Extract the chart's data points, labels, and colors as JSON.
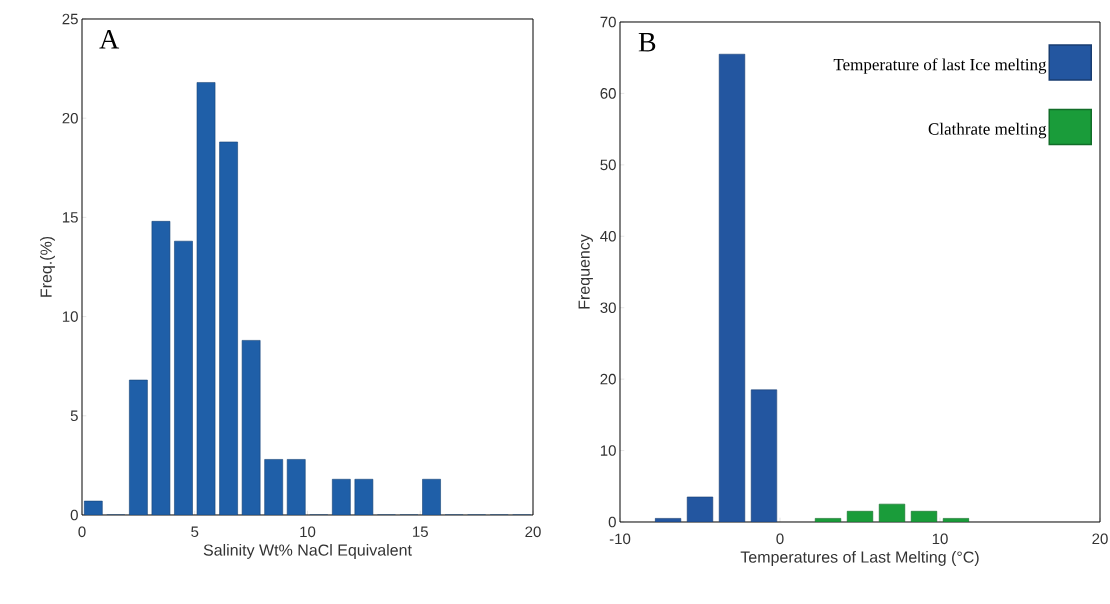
{
  "chart_data": [
    {
      "type": "histogram",
      "title": "A",
      "xlabel": "Salinity Wt% NaCl Equivalent",
      "ylabel": "Freq.(%)",
      "bins": [
        0,
        1,
        2,
        3,
        4,
        5,
        6,
        7,
        8,
        9,
        10,
        11,
        12,
        13,
        14,
        15,
        16,
        17,
        18,
        19,
        20
      ],
      "series": [
        {
          "color": "#1f5fa8",
          "values": [
            0.7,
            0,
            6.8,
            14.8,
            13.8,
            21.8,
            18.8,
            8.8,
            2.8,
            2.8,
            0,
            1.8,
            1.8,
            0,
            0,
            1.8,
            0,
            0,
            0,
            0
          ]
        }
      ],
      "xlim": [
        0,
        20
      ],
      "ylim": [
        0,
        25
      ],
      "xticks": [
        0,
        5,
        10,
        15,
        20
      ],
      "yticks": [
        0,
        5,
        10,
        15,
        20,
        25
      ]
    },
    {
      "type": "histogram",
      "title": "B",
      "xlabel": "Temperatures of Last Melting (°C)",
      "ylabel": "Frequency",
      "bins": [
        -8,
        -6,
        -4,
        -2,
        0,
        2,
        4,
        6,
        8,
        10,
        12
      ],
      "series": [
        {
          "name": "Temperature of last Ice melting",
          "color": "#2356a0",
          "values": [
            0.5,
            3.5,
            65.5,
            18.5,
            null,
            null,
            null,
            null,
            null,
            null
          ]
        },
        {
          "name": "Clathrate melting",
          "color": "#1a9c3a",
          "values": [
            null,
            null,
            null,
            null,
            null,
            0.5,
            1.5,
            2.5,
            1.5,
            0.5
          ]
        }
      ],
      "xlim": [
        -10,
        20
      ],
      "ylim": [
        0,
        70
      ],
      "xticks": [
        -10,
        0,
        10,
        20
      ],
      "yticks": [
        0,
        10,
        20,
        30,
        40,
        50,
        60,
        70
      ],
      "legend": "top right"
    }
  ]
}
